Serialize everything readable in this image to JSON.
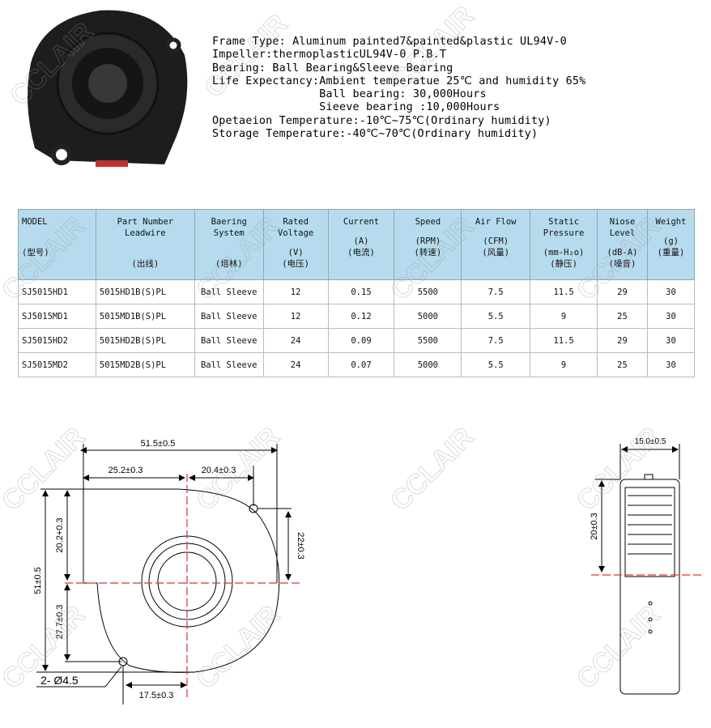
{
  "specs": [
    "Frame Type: Aluminum painted7&painted&plastic UL94V-0",
    "Impeller:thermoplasticUL94V-0 P.B.T",
    "Bearing: Ball Bearing&Sleeve Bearing",
    "Life Expectancy:Ambient temperatue 25℃ and humidity 65%",
    "                Ball bearing: 30,000Hours",
    "                Sieeve bearing :10,000Hours",
    "Opetaeion Temperature:-10℃~75℃(Ordinary humidity)",
    "Storage Temperature:-40℃~70℃(Ordinary humidity)"
  ],
  "table": {
    "headers": [
      {
        "label": "MODEL",
        "unit": "",
        "cn": "(型号)"
      },
      {
        "label": "Part Number Leadwire",
        "unit": "",
        "cn": "(出线)"
      },
      {
        "label": "Baering System",
        "unit": "",
        "cn": "(培林)"
      },
      {
        "label": "Rated Voltage",
        "unit": "(V)",
        "cn": "(电压)"
      },
      {
        "label": "Current",
        "unit": "(A)",
        "cn": "(电流)"
      },
      {
        "label": "Speed",
        "unit": "(RPM)",
        "cn": "(转速)"
      },
      {
        "label": "Air Flow",
        "unit": "(CFM)",
        "cn": "(风量)"
      },
      {
        "label": "Static Pressure",
        "unit": "(mm-H₂o)",
        "cn": "(静压)"
      },
      {
        "label": "Niose Level",
        "unit": "(dB-A)",
        "cn": "(噪音)"
      },
      {
        "label": "Weight",
        "unit": "(g)",
        "cn": "(重量)"
      }
    ],
    "rows": [
      [
        "SJ5015HD1",
        "5015HD1B(S)PL",
        "Ball Sleeve",
        "12",
        "0.15",
        "5500",
        "7.5",
        "11.5",
        "29",
        "30"
      ],
      [
        "SJ5015MD1",
        "5015MD1B(S)PL",
        "Ball Sleeve",
        "12",
        "0.12",
        "5000",
        "5.5",
        "9",
        "25",
        "30"
      ],
      [
        "SJ5015HD2",
        "5015HD2B(S)PL",
        "Ball Sleeve",
        "24",
        "0.09",
        "5500",
        "7.5",
        "11.5",
        "29",
        "30"
      ],
      [
        "SJ5015MD2",
        "5015MD2B(S)PL",
        "Ball Sleeve",
        "24",
        "0.07",
        "5000",
        "5.5",
        "9",
        "25",
        "30"
      ]
    ],
    "header_color": "#b7dbee"
  },
  "front_view": {
    "overall_width": "51.5±0.5",
    "left_to_center": "25.2±0.3",
    "center_to_hole": "20.4±0.3",
    "overall_height": "51±0.5",
    "top_to_center": "20.2+0.3",
    "hole_to_center_v": "22±0.3",
    "center_to_bottom_hole": "27.7±0.3",
    "holes": "2- Ø4.5",
    "bottom_hole_offset": "17.5±0.3"
  },
  "side_view": {
    "thickness": "15.0±0.5",
    "height_to_center": "20±0.3"
  },
  "watermark": "CCLAIR",
  "centerline_color": "#e03030"
}
